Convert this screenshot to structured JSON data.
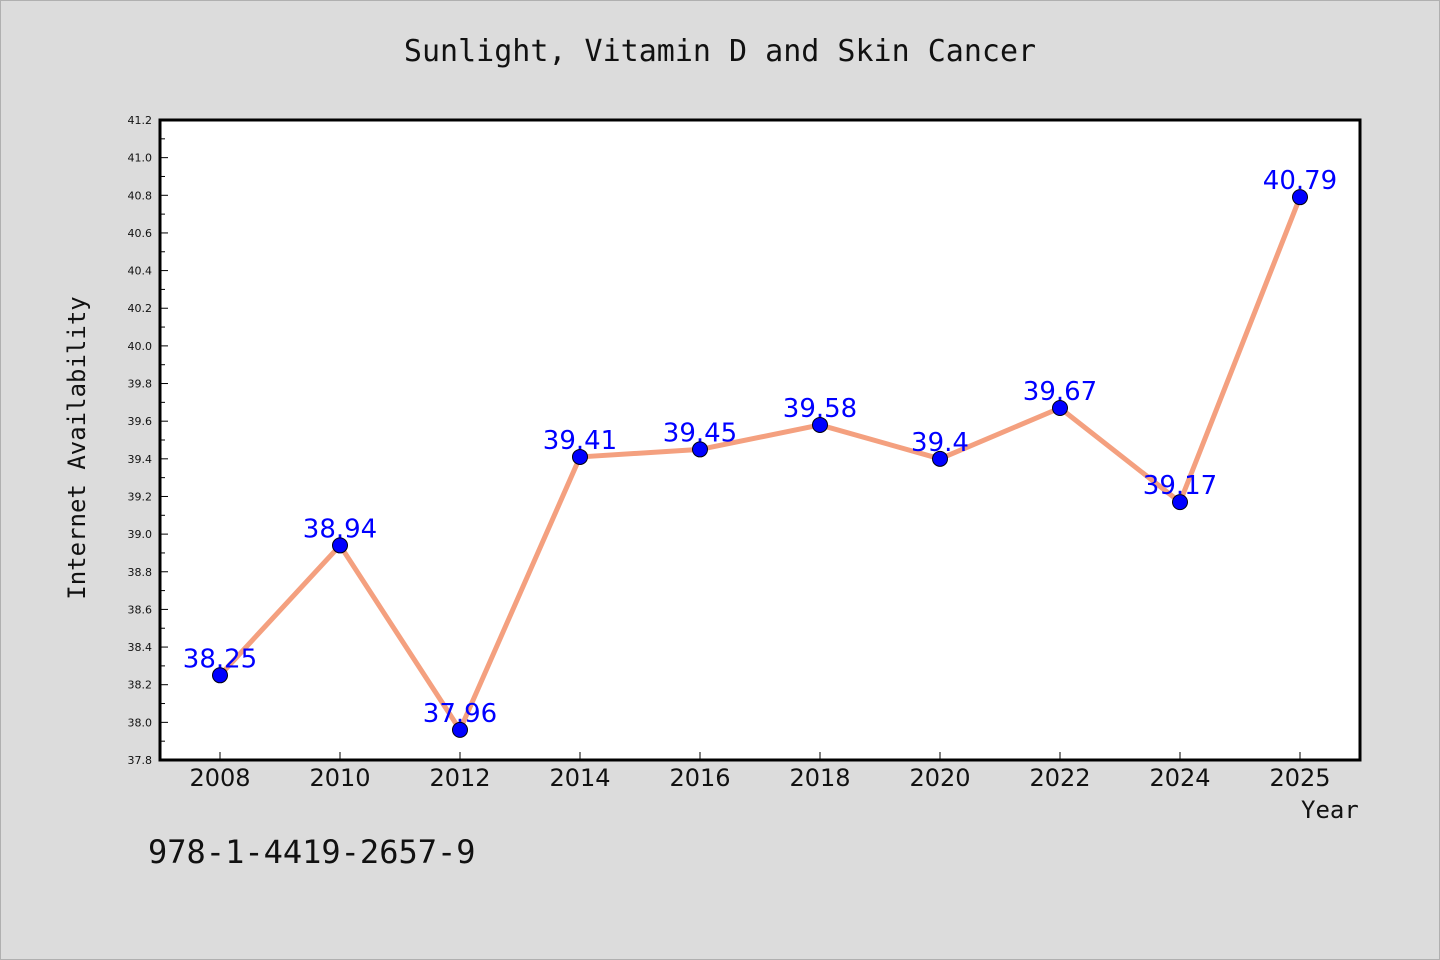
{
  "chart_data": {
    "type": "line",
    "title": "Sunlight, Vitamin D and Skin Cancer",
    "xlabel": "Year",
    "ylabel": "Internet Availability",
    "categories": [
      "2008",
      "2010",
      "2012",
      "2014",
      "2016",
      "2018",
      "2020",
      "2022",
      "2024",
      "2025"
    ],
    "series": [
      {
        "values": [
          38.25,
          38.94,
          37.96,
          39.41,
          39.45,
          39.58,
          39.4,
          39.67,
          39.17,
          40.79
        ],
        "data_labels": [
          "38.25",
          "38.94",
          "37.96",
          "39.41",
          "39.45",
          "39.58",
          "39.4",
          "39.67",
          "39.17",
          "40.79"
        ]
      }
    ],
    "ylim": [
      37.8,
      41.2
    ],
    "y_major_ticks": [
      "37.8",
      "38.0",
      "38.2",
      "38.4",
      "38.6",
      "38.8",
      "39.0",
      "39.2",
      "39.4",
      "39.6",
      "39.8",
      "40.0",
      "40.2",
      "40.4",
      "40.6",
      "40.8",
      "41.0",
      "41.2"
    ],
    "grid": false,
    "legend": "none",
    "line_color": "#f4a07f",
    "marker_color": "#0000ff",
    "label_color": "#0000ff",
    "background_color": "#dcdcdc",
    "plot_background_color": "#ffffff"
  },
  "annotation": {
    "isbn": "978-1-4419-2657-9"
  }
}
